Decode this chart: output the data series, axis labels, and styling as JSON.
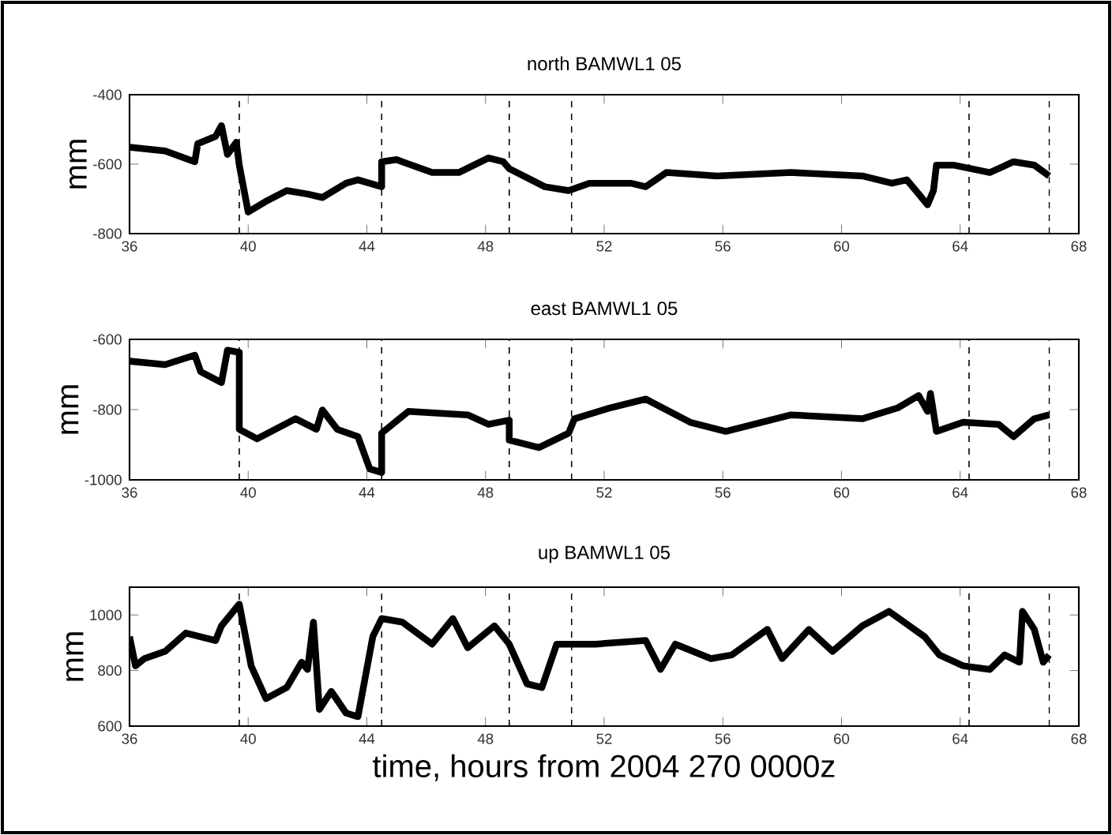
{
  "chart_data": [
    {
      "type": "line",
      "title": "north BAMWL1 05",
      "ylabel": "mm",
      "xlim": [
        36,
        68
      ],
      "xticks": [
        36,
        40,
        44,
        48,
        52,
        56,
        60,
        64,
        68
      ],
      "ylim": [
        -800,
        -400
      ],
      "yticks": [
        -800,
        -600,
        -400
      ],
      "grid": false,
      "marker": "none",
      "line_style": "solid",
      "ref_lines": [
        {
          "axis": "x",
          "value": 39.7,
          "color": "#000000",
          "line_style": "dashed"
        },
        {
          "axis": "x",
          "value": 44.5,
          "color": "#000000",
          "line_style": "dashed"
        },
        {
          "axis": "x",
          "value": 48.8,
          "color": "#000000",
          "line_style": "dashed"
        },
        {
          "axis": "x",
          "value": 50.9,
          "color": "#000000",
          "line_style": "dashed"
        },
        {
          "axis": "x",
          "value": 64.3,
          "color": "#000000",
          "line_style": "dashed"
        },
        {
          "axis": "x",
          "value": 67.0,
          "color": "#000000",
          "line_style": "dashed"
        }
      ],
      "series": [
        {
          "color": "#000000",
          "x": [
            36,
            37.2,
            38.2,
            38.3,
            38.9,
            39.1,
            39.3,
            39.6,
            39.7,
            40.0,
            40.6,
            41.3,
            42.0,
            42.5,
            43.3,
            43.7,
            44.5,
            44.5,
            45.0,
            46.2,
            47.1,
            48.1,
            48.6,
            48.8,
            50.0,
            50.8,
            51.5,
            52.9,
            53.4,
            54.1,
            55.8,
            58.3,
            60.7,
            61.7,
            62.2,
            62.6,
            62.9,
            63.1,
            63.2,
            63.8,
            65.0,
            65.8,
            66.5,
            67.0
          ],
          "values": [
            -551,
            -562,
            -593,
            -541,
            -520,
            -489,
            -572,
            -537,
            -603,
            -738,
            -707,
            -676,
            -686,
            -696,
            -655,
            -645,
            -665,
            -593,
            -587,
            -624,
            -624,
            -582,
            -593,
            -613,
            -665,
            -676,
            -655,
            -655,
            -665,
            -624,
            -634,
            -624,
            -634,
            -655,
            -645,
            -686,
            -717,
            -676,
            -603,
            -603,
            -624,
            -593,
            -603,
            -634
          ]
        }
      ]
    },
    {
      "type": "line",
      "title": "east BAMWL1 05",
      "ylabel": "mm",
      "xlim": [
        36,
        68
      ],
      "xticks": [
        36,
        40,
        44,
        48,
        52,
        56,
        60,
        64,
        68
      ],
      "ylim": [
        -1000,
        -600
      ],
      "yticks": [
        -1000,
        -800,
        -600
      ],
      "grid": false,
      "marker": "none",
      "line_style": "solid",
      "ref_lines": [
        {
          "axis": "x",
          "value": 39.7,
          "color": "#000000",
          "line_style": "dashed"
        },
        {
          "axis": "x",
          "value": 44.5,
          "color": "#000000",
          "line_style": "dashed"
        },
        {
          "axis": "x",
          "value": 48.8,
          "color": "#000000",
          "line_style": "dashed"
        },
        {
          "axis": "x",
          "value": 50.9,
          "color": "#000000",
          "line_style": "dashed"
        },
        {
          "axis": "x",
          "value": 64.3,
          "color": "#000000",
          "line_style": "dashed"
        },
        {
          "axis": "x",
          "value": 67.0,
          "color": "#000000",
          "line_style": "dashed"
        }
      ],
      "series": [
        {
          "color": "#000000",
          "x": [
            36,
            37.2,
            38.2,
            38.4,
            39.1,
            39.3,
            39.7,
            39.7,
            40.3,
            41.6,
            42.3,
            42.5,
            43.0,
            43.7,
            44.1,
            44.5,
            44.5,
            45.4,
            47.4,
            48.1,
            48.8,
            48.8,
            49.8,
            50.8,
            51.0,
            52.2,
            53.4,
            54.9,
            56.1,
            58.3,
            60.7,
            61.9,
            62.6,
            62.9,
            63.0,
            63.2,
            64.1,
            65.3,
            65.8,
            66.5,
            67.0
          ],
          "values": [
            -662,
            -672,
            -645,
            -692,
            -723,
            -631,
            -637,
            -856,
            -883,
            -826,
            -856,
            -801,
            -856,
            -877,
            -969,
            -979,
            -867,
            -805,
            -815,
            -842,
            -830,
            -887,
            -908,
            -867,
            -826,
            -795,
            -770,
            -836,
            -862,
            -815,
            -826,
            -795,
            -760,
            -805,
            -754,
            -862,
            -836,
            -842,
            -877,
            -826,
            -815
          ]
        }
      ]
    },
    {
      "type": "line",
      "title": "up BAMWL1 05",
      "ylabel": "mm",
      "xlabel": "time, hours from 2004  270 0000z",
      "xlim": [
        36,
        68
      ],
      "xticks": [
        36,
        40,
        44,
        48,
        52,
        56,
        60,
        64,
        68
      ],
      "ylim": [
        600,
        1100
      ],
      "yticks": [
        600,
        800,
        1000
      ],
      "grid": false,
      "marker": "none",
      "line_style": "solid",
      "ref_lines": [
        {
          "axis": "x",
          "value": 39.7,
          "color": "#000000",
          "line_style": "dashed"
        },
        {
          "axis": "x",
          "value": 44.5,
          "color": "#000000",
          "line_style": "dashed"
        },
        {
          "axis": "x",
          "value": 48.8,
          "color": "#000000",
          "line_style": "dashed"
        },
        {
          "axis": "x",
          "value": 50.9,
          "color": "#000000",
          "line_style": "dashed"
        },
        {
          "axis": "x",
          "value": 64.3,
          "color": "#000000",
          "line_style": "dashed"
        },
        {
          "axis": "x",
          "value": 67.0,
          "color": "#000000",
          "line_style": "dashed"
        }
      ],
      "series": [
        {
          "color": "#000000",
          "x": [
            36,
            36.2,
            36.5,
            37.2,
            37.9,
            38.9,
            39.1,
            39.6,
            39.7,
            40.1,
            40.6,
            41.3,
            41.8,
            42.0,
            42.2,
            42.4,
            42.8,
            43.3,
            43.7,
            44.2,
            44.5,
            45.2,
            46.2,
            46.9,
            47.4,
            48.3,
            48.8,
            49.4,
            49.9,
            50.4,
            51.7,
            53.4,
            53.9,
            54.4,
            55.6,
            56.3,
            57.5,
            58.0,
            58.9,
            59.7,
            60.7,
            61.6,
            62.8,
            63.3,
            64.1,
            65.0,
            65.5,
            66.0,
            66.1,
            66.5,
            66.8,
            67.0
          ],
          "values": [
            922,
            817,
            843,
            869,
            935,
            908,
            961,
            1026,
            1039,
            817,
            699,
            739,
            830,
            804,
            974,
            660,
            725,
            647,
            634,
            922,
            987,
            974,
            895,
            987,
            882,
            961,
            895,
            752,
            739,
            895,
            895,
            908,
            804,
            895,
            843,
            856,
            948,
            843,
            948,
            869,
            961,
            1013,
            922,
            856,
            817,
            804,
            856,
            830,
            1013,
            948,
            830,
            856
          ]
        }
      ]
    }
  ]
}
